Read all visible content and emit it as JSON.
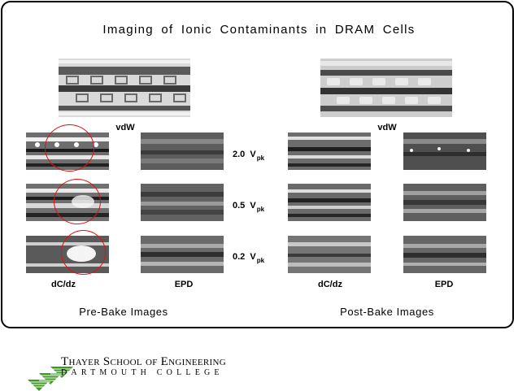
{
  "title": "Imaging of Ionic Contaminants in DRAM Cells",
  "left_panel": {
    "vdw_label": "vdW",
    "column_labels": [
      "dC/dz",
      "EPD"
    ],
    "caption": "Pre-Bake Images"
  },
  "right_panel": {
    "vdw_label": "vdW",
    "column_labels": [
      "dC/dz",
      "EPD"
    ],
    "caption": "Post-Bake Images"
  },
  "voltages": [
    {
      "value": "2.0",
      "unit": "V",
      "sub": "pk"
    },
    {
      "value": "0.5",
      "unit": "V",
      "sub": "pk"
    },
    {
      "value": "0.2",
      "unit": "V",
      "sub": "pk"
    }
  ],
  "logo": {
    "school": "Thayer School of Engineering",
    "college": "DARTMOUTH COLLEGE",
    "icon": "green-striped-triangles-logo"
  },
  "colors": {
    "circle": "#e01010",
    "logo_green": "#3a9b1e"
  }
}
